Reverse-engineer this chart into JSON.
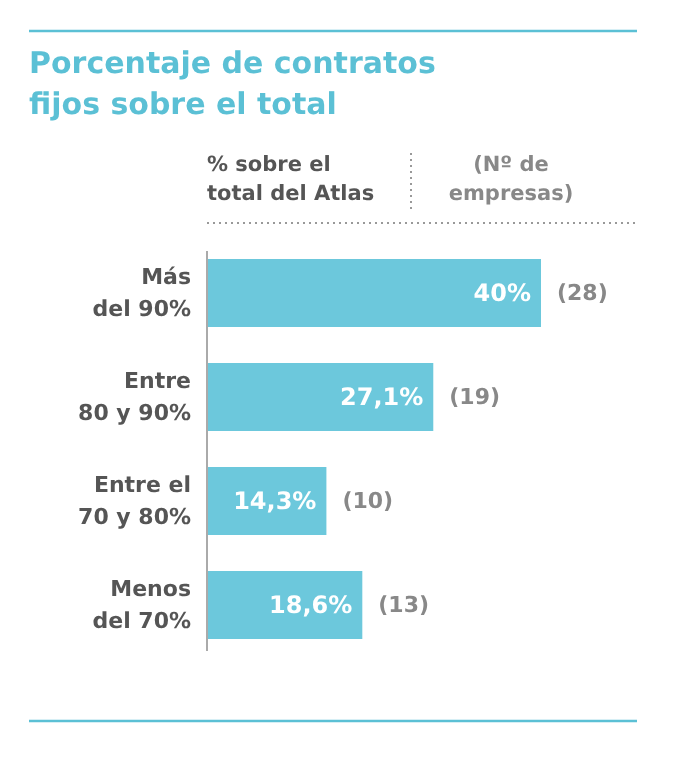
{
  "chart_data": {
    "type": "bar",
    "orientation": "horizontal",
    "title": "Porcentaje de contratos\nfijos sobre el total",
    "categories": [
      "Más\ndel 90%",
      "Entre\n80 y 90%",
      "Entre el\n70 y 80%",
      "Menos\ndel 70%"
    ],
    "values": [
      40,
      27.1,
      14.3,
      18.6
    ],
    "value_labels": [
      "40%",
      "27,1%",
      "14,3%",
      "18,6%"
    ],
    "color": "#6cc8dc",
    "annotations": [
      "% sobre el\ntotal del Atlas",
      "(Nº de\nempresas)",
      {
        "text": "(28)",
        "x": 40,
        "y": "Más\ndel 90%"
      },
      {
        "text": "(19)",
        "x": 27.1,
        "y": "Entre\n80 y 90%"
      },
      {
        "text": "(10)",
        "x": 14.3,
        "y": "Entre el\n70 y 80%"
      },
      {
        "text": "(13)",
        "x": 18.6,
        "y": "Menos\ndel 70%"
      }
    ]
  }
}
